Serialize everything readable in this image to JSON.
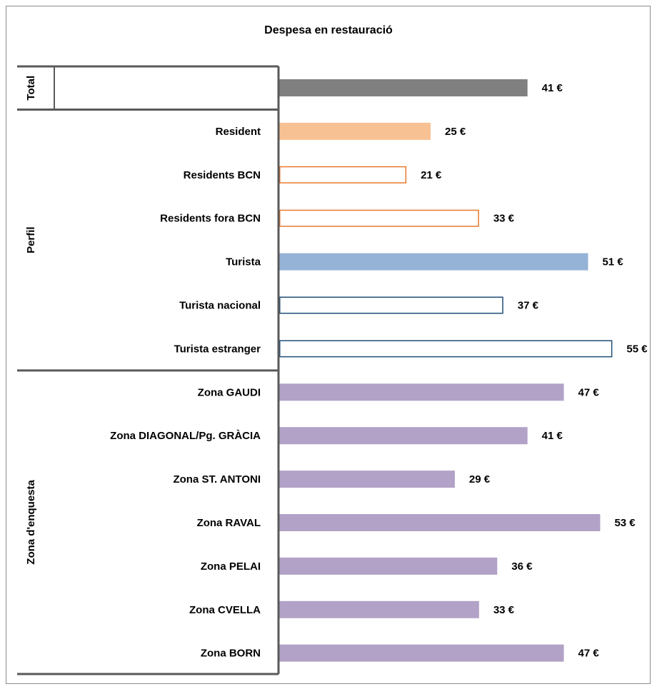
{
  "chart_data": {
    "type": "bar",
    "orientation": "horizontal",
    "title": "Despesa en restauració",
    "unit": "€",
    "groups": [
      {
        "name": "Total",
        "rows": [
          {
            "label": "Total",
            "value": 41,
            "value_label": "41 €",
            "color": "#808080",
            "style": "filled",
            "show_label": false
          }
        ]
      },
      {
        "name": "Perfil",
        "rows": [
          {
            "label": "Resident",
            "value": 25,
            "value_label": "25 €",
            "color": "#f8c194",
            "style": "filled",
            "show_label": true
          },
          {
            "label": "Residents BCN",
            "value": 21,
            "value_label": "21 €",
            "color": "#e8782e",
            "style": "outline",
            "show_label": true
          },
          {
            "label": "Residents fora BCN",
            "value": 33,
            "value_label": "33 €",
            "color": "#e8782e",
            "style": "outline",
            "show_label": true
          },
          {
            "label": "Turista",
            "value": 51,
            "value_label": "51 €",
            "color": "#95b3d7",
            "style": "filled",
            "show_label": true
          },
          {
            "label": "Turista  nacional",
            "value": 37,
            "value_label": "37 €",
            "color": "#1f4e79",
            "style": "outline",
            "show_label": true
          },
          {
            "label": "Turista estranger",
            "value": 55,
            "value_label": "55 €",
            "color": "#1f4e79",
            "style": "outline",
            "show_label": true
          }
        ]
      },
      {
        "name": "Zona d'enquesta",
        "rows": [
          {
            "label": "Zona GAUDI",
            "value": 47,
            "value_label": "47 €",
            "color": "#b2a2c7",
            "style": "filled",
            "show_label": true
          },
          {
            "label": "Zona DIAGONAL/Pg. GRÀCIA",
            "value": 41,
            "value_label": "41 €",
            "color": "#b2a2c7",
            "style": "filled",
            "show_label": true
          },
          {
            "label": "Zona ST. ANTONI",
            "value": 29,
            "value_label": "29 €",
            "color": "#b2a2c7",
            "style": "filled",
            "show_label": true
          },
          {
            "label": "Zona RAVAL",
            "value": 53,
            "value_label": "53 €",
            "color": "#b2a2c7",
            "style": "filled",
            "show_label": true
          },
          {
            "label": "Zona PELAI",
            "value": 36,
            "value_label": "36 €",
            "color": "#b2a2c7",
            "style": "filled",
            "show_label": true
          },
          {
            "label": "Zona CVELLA",
            "value": 33,
            "value_label": "33 €",
            "color": "#b2a2c7",
            "style": "filled",
            "show_label": true
          },
          {
            "label": "Zona BORN",
            "value": 47,
            "value_label": "47 €",
            "color": "#b2a2c7",
            "style": "filled",
            "show_label": true
          }
        ]
      }
    ],
    "xlim": [
      0,
      55
    ],
    "grid": false,
    "legend": "none"
  }
}
